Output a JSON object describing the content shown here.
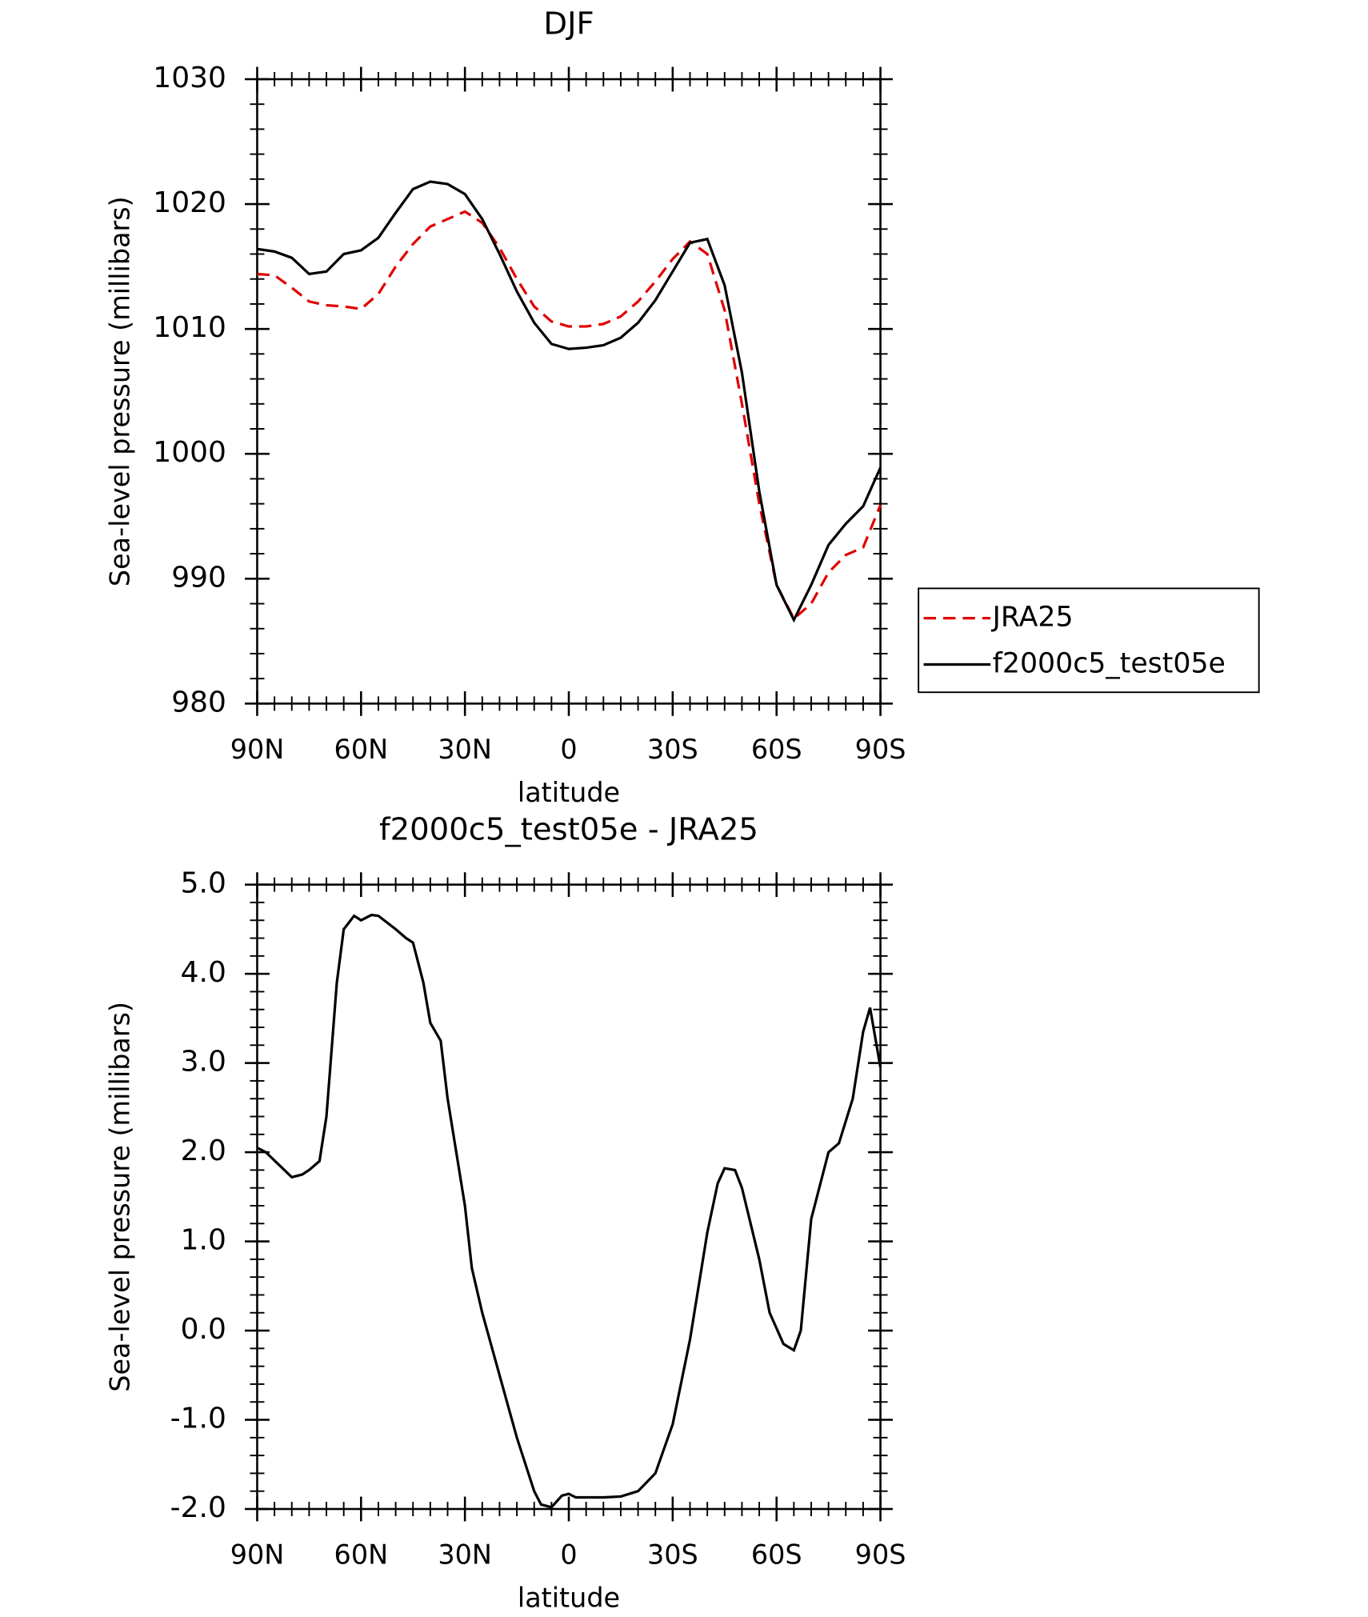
{
  "chart_data": [
    {
      "type": "line",
      "title": "DJF",
      "x_label": "latitude",
      "y_label": "Sea-level pressure (millibars)",
      "xlim": [
        90,
        -90
      ],
      "xticks": [
        {
          "value": 90,
          "label": "90N"
        },
        {
          "value": 60,
          "label": "60N"
        },
        {
          "value": 30,
          "label": "30N"
        },
        0,
        {
          "value": -30,
          "label": "30S"
        },
        {
          "value": -60,
          "label": "60S"
        },
        {
          "value": -90,
          "label": "90S"
        }
      ],
      "ylim": [
        980,
        1030
      ],
      "yticks": [
        980,
        990,
        1000,
        1010,
        1020,
        1030
      ],
      "x": [
        90,
        85,
        80,
        75,
        70,
        65,
        60,
        55,
        50,
        45,
        40,
        35,
        30,
        25,
        20,
        15,
        10,
        5,
        0,
        -5,
        -10,
        -15,
        -20,
        -25,
        -30,
        -35,
        -40,
        -45,
        -50,
        -55,
        -60,
        -65,
        -70,
        -75,
        -80,
        -85,
        -90
      ],
      "series": [
        {
          "name": "JRA25",
          "color": "#e00000",
          "dashed": true,
          "values": [
            1014.4,
            1014.3,
            1013.3,
            1012.2,
            1011.9,
            1011.8,
            1011.6,
            1012.8,
            1015.0,
            1016.8,
            1018.2,
            1018.8,
            1019.4,
            1018.5,
            1016.5,
            1014.0,
            1011.8,
            1010.6,
            1010.2,
            1010.2,
            1010.4,
            1011.0,
            1012.2,
            1013.8,
            1015.6,
            1017.0,
            1016.0,
            1011.5,
            1004.0,
            996.0,
            989.5,
            986.8,
            988.0,
            990.5,
            991.9,
            992.5,
            995.9
          ]
        },
        {
          "name": "f2000c5_test05e",
          "color": "#000000",
          "dashed": false,
          "values": [
            1016.4,
            1016.2,
            1015.7,
            1014.4,
            1014.6,
            1016.0,
            1016.3,
            1017.3,
            1019.3,
            1021.2,
            1021.8,
            1021.6,
            1020.8,
            1018.8,
            1016.0,
            1013.0,
            1010.5,
            1008.8,
            1008.4,
            1008.5,
            1008.7,
            1009.3,
            1010.5,
            1012.3,
            1014.6,
            1016.9,
            1017.2,
            1013.5,
            1006.5,
            997.0,
            989.5,
            986.7,
            989.5,
            992.7,
            994.4,
            995.8,
            998.9
          ]
        }
      ],
      "legend": "right"
    },
    {
      "type": "line",
      "title": "f2000c5_test05e - JRA25",
      "x_label": "latitude",
      "y_label": "Sea-level pressure (millibars)",
      "xlim": [
        90,
        -90
      ],
      "xticks": [
        {
          "value": 90,
          "label": "90N"
        },
        {
          "value": 60,
          "label": "60N"
        },
        {
          "value": 30,
          "label": "30N"
        },
        0,
        {
          "value": -30,
          "label": "30S"
        },
        {
          "value": -60,
          "label": "60S"
        },
        {
          "value": -90,
          "label": "90S"
        }
      ],
      "ylim": [
        -2,
        5
      ],
      "yticks": [
        {
          "value": -2,
          "label": "-2.0"
        },
        {
          "value": -1,
          "label": "-1.0"
        },
        {
          "value": 0,
          "label": "0.0"
        },
        {
          "value": 1,
          "label": "1.0"
        },
        {
          "value": 2,
          "label": "2.0"
        },
        {
          "value": 3,
          "label": "3.0"
        },
        {
          "value": 4,
          "label": "4.0"
        },
        {
          "value": 5,
          "label": "5.0"
        }
      ],
      "x": [
        90,
        87.5,
        80,
        77,
        75,
        72,
        70,
        67,
        65,
        62,
        60,
        57,
        55,
        50,
        47,
        45,
        42,
        40,
        37,
        35,
        30,
        28,
        25,
        20,
        15,
        10,
        8,
        5,
        2,
        0,
        -2,
        -5,
        -10,
        -15,
        -20,
        -25,
        -30,
        -35,
        -40,
        -43,
        -45,
        -48,
        -50,
        -55,
        -58,
        -62,
        -65,
        -67,
        -70,
        -72,
        -75,
        -78,
        -80,
        -82,
        -85,
        -87,
        -90
      ],
      "series": [
        {
          "color": "#000000",
          "dashed": false,
          "values": [
            2.05,
            2.0,
            1.72,
            1.75,
            1.8,
            1.9,
            2.4,
            3.9,
            4.5,
            4.65,
            4.6,
            4.66,
            4.65,
            4.5,
            4.4,
            4.35,
            3.9,
            3.45,
            3.25,
            2.6,
            1.4,
            0.7,
            0.2,
            -0.5,
            -1.2,
            -1.8,
            -1.95,
            -1.98,
            -1.85,
            -1.83,
            -1.87,
            -1.87,
            -1.87,
            -1.86,
            -1.8,
            -1.6,
            -1.05,
            -0.1,
            1.1,
            1.65,
            1.82,
            1.8,
            1.6,
            0.8,
            0.2,
            -0.15,
            -0.22,
            0.0,
            1.25,
            1.55,
            2.0,
            2.1,
            2.35,
            2.6,
            3.35,
            3.62,
            2.95
          ]
        }
      ]
    }
  ]
}
